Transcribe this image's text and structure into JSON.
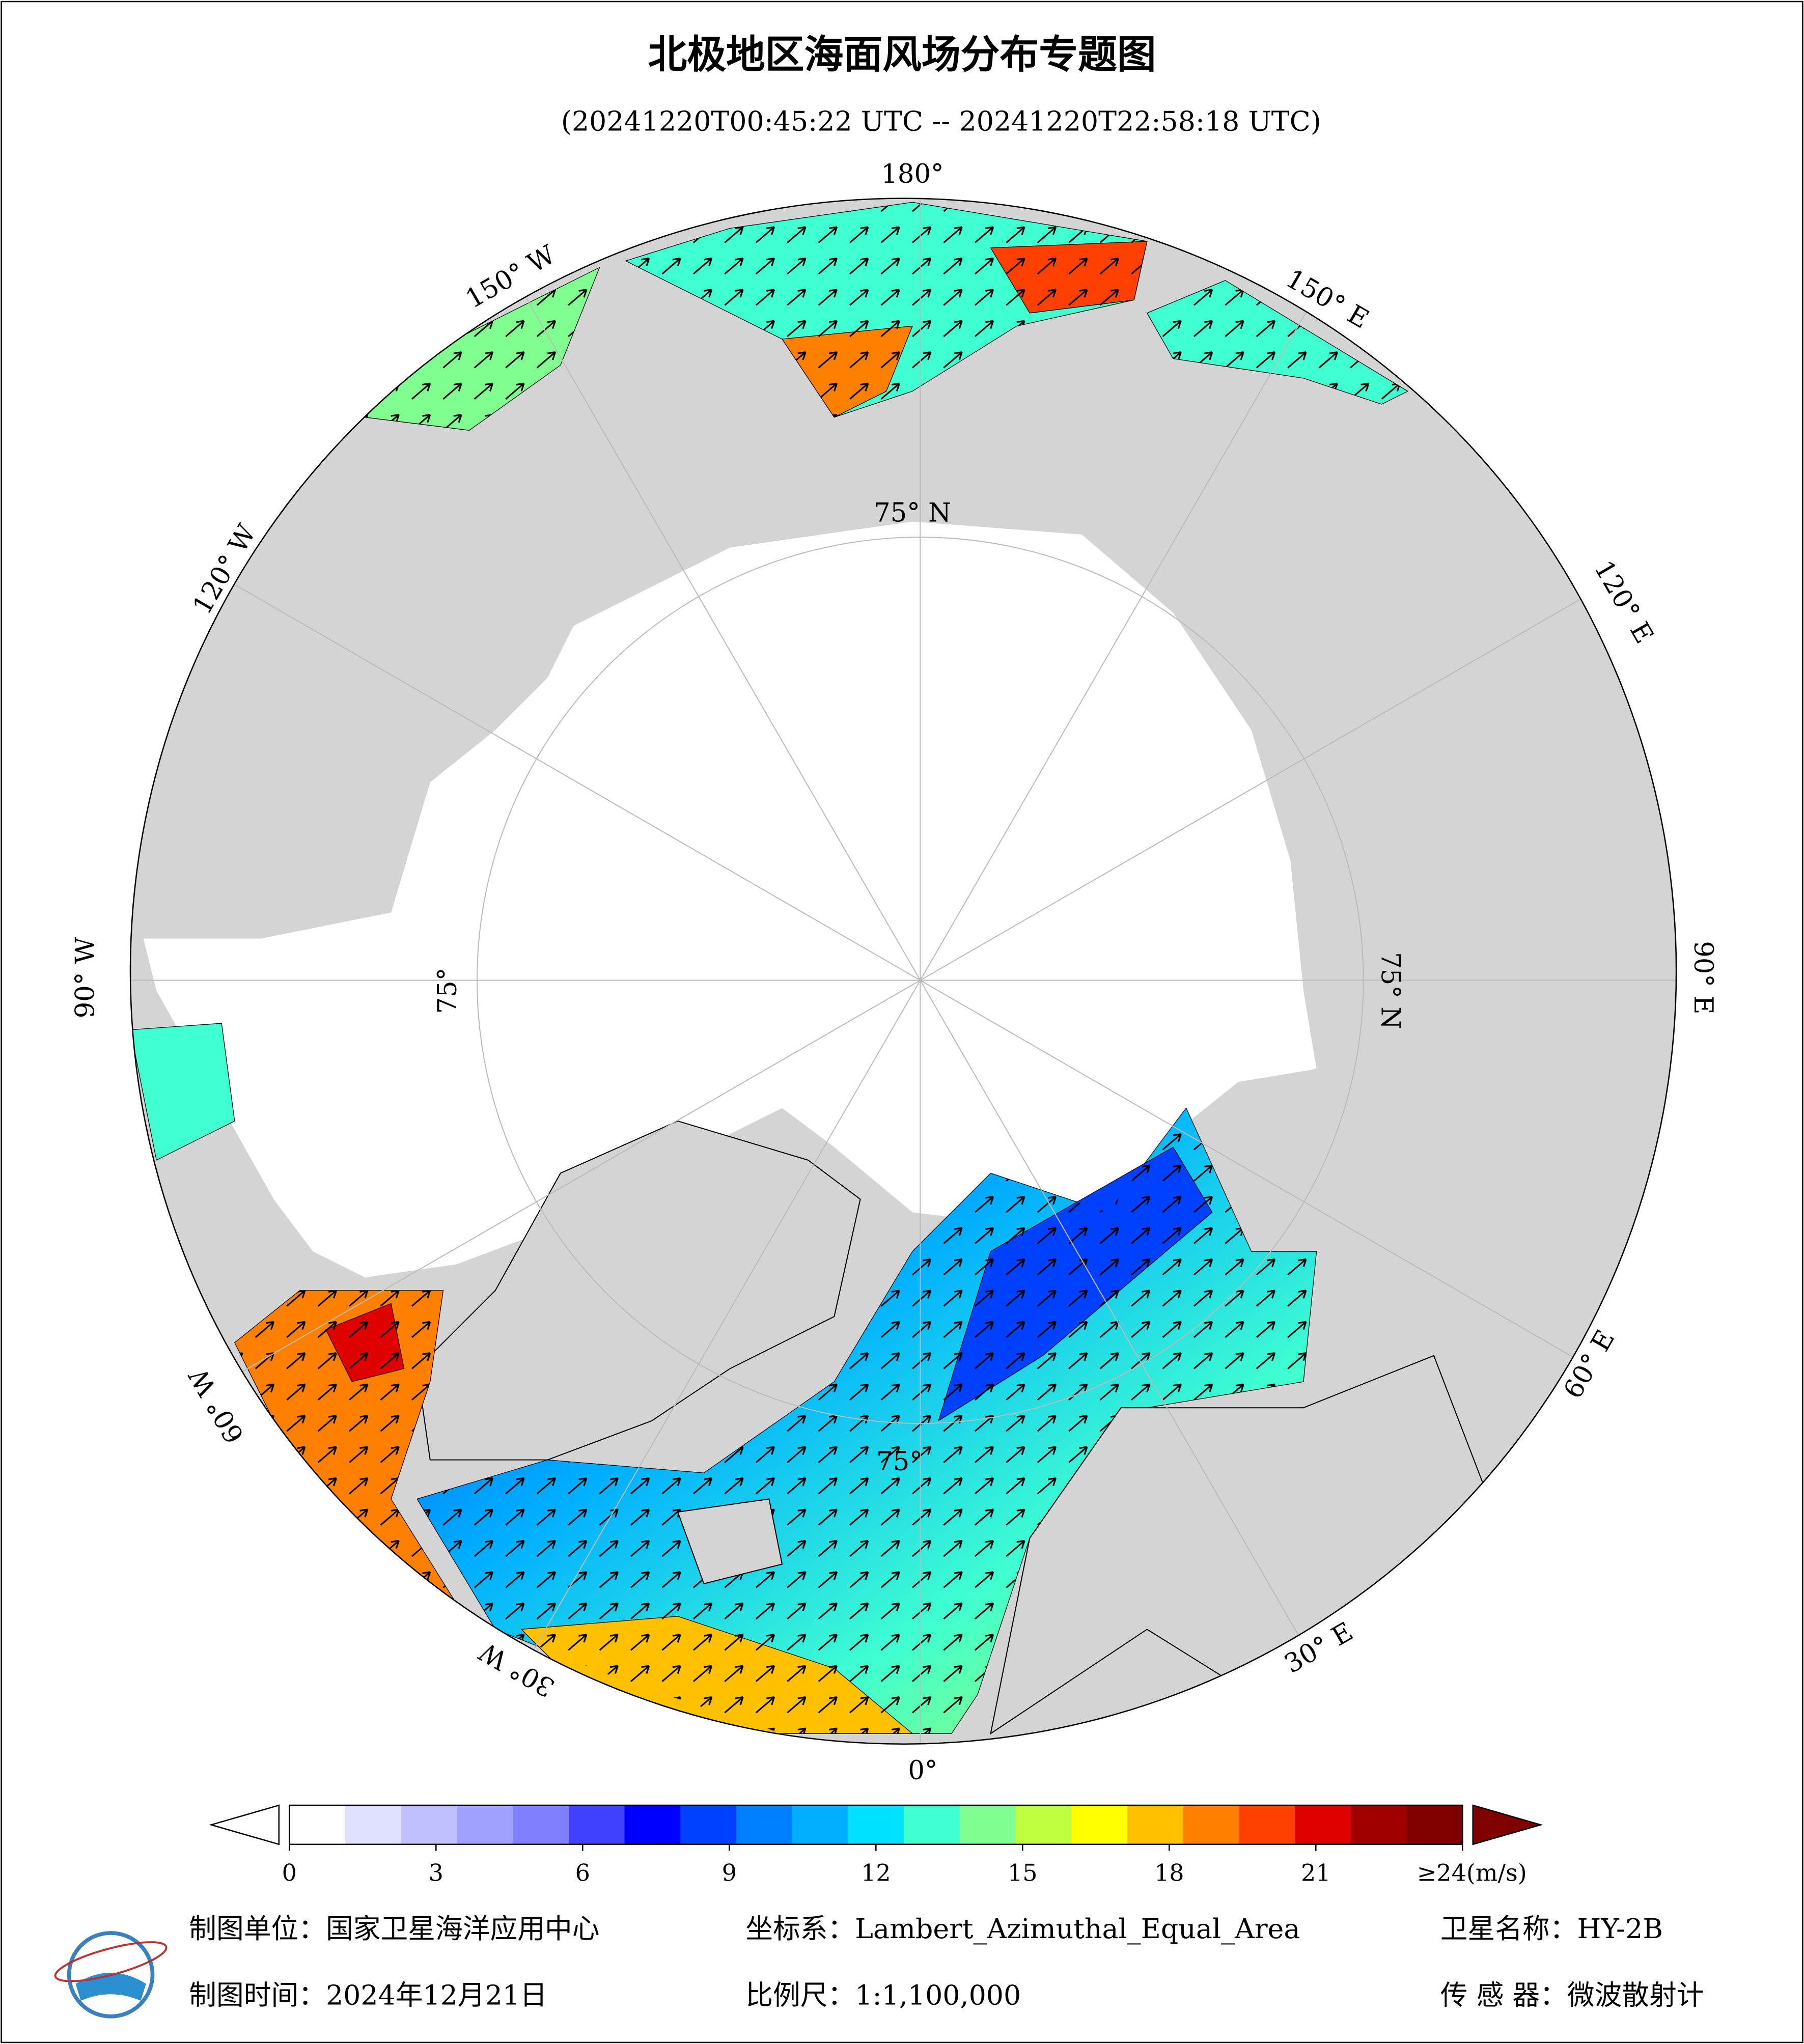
{
  "title": "北极地区海面风场分布专题图",
  "subtitle": "(20241220T00:45:22 UTC -- 20241220T22:58:18 UTC)",
  "map": {
    "longitude_labels": [
      "180°",
      "150° E",
      "120° E",
      "90° E",
      "60° E",
      "30° E",
      "0°",
      "30° W",
      "60° W",
      "90° W",
      "120° W",
      "150° W"
    ],
    "latitude_labels": [
      "75° N",
      "75° N",
      "75°",
      "75°"
    ]
  },
  "colorbar": {
    "lim": [
      0,
      24
    ],
    "ticks": [
      0,
      3,
      6,
      9,
      12,
      15,
      18,
      21,
      {
        "value": 24,
        "label": "≥24(m/s)"
      }
    ],
    "colors": [
      "#ffffff",
      "#e0e0ff",
      "#c0c0ff",
      "#a0a0ff",
      "#8080ff",
      "#4040ff",
      "#0000ff",
      "#0040ff",
      "#0080ff",
      "#00b0ff",
      "#00e0ff",
      "#40ffd0",
      "#80ff90",
      "#c0ff40",
      "#ffff00",
      "#ffc000",
      "#ff8000",
      "#ff4000",
      "#e00000",
      "#a00000",
      "#800000"
    ]
  },
  "footer": {
    "producer": "制图单位：国家卫星海洋应用中心",
    "date": "制图时间：2024年12月21日",
    "projection": "坐标系：Lambert_Azimuthal_Equal_Area",
    "scale": "比例尺：1:1,100,000",
    "satellite": "卫星名称：HY-2B",
    "sensor": "传 感 器：微波散射计"
  }
}
